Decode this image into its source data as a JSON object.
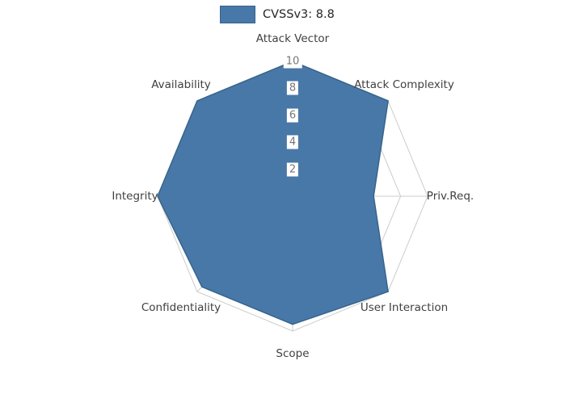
{
  "legend": {
    "label": "CVSSv3: 8.8"
  },
  "chart_data": {
    "type": "radar",
    "title": "CVSSv3: 8.8",
    "categories": [
      "Attack Vector",
      "Attack Complexity",
      "Priv.Req.",
      "User Interaction",
      "Scope",
      "Confidentiality",
      "Integrity",
      "Availability"
    ],
    "series": [
      {
        "name": "CVSSv3: 8.8",
        "values": [
          10,
          10,
          6,
          10,
          9.5,
          9.5,
          10,
          10
        ]
      }
    ],
    "radial_ticks": [
      2,
      4,
      6,
      8,
      10
    ],
    "rlim": [
      0,
      10
    ],
    "grid": true,
    "legend_position": "top-center",
    "colors": {
      "fill": "#4878a8",
      "stroke": "#36648b",
      "grid": "#cccccc",
      "axis_label": "#404040",
      "tick_label": "#767676",
      "legend_text": "#262626"
    }
  }
}
